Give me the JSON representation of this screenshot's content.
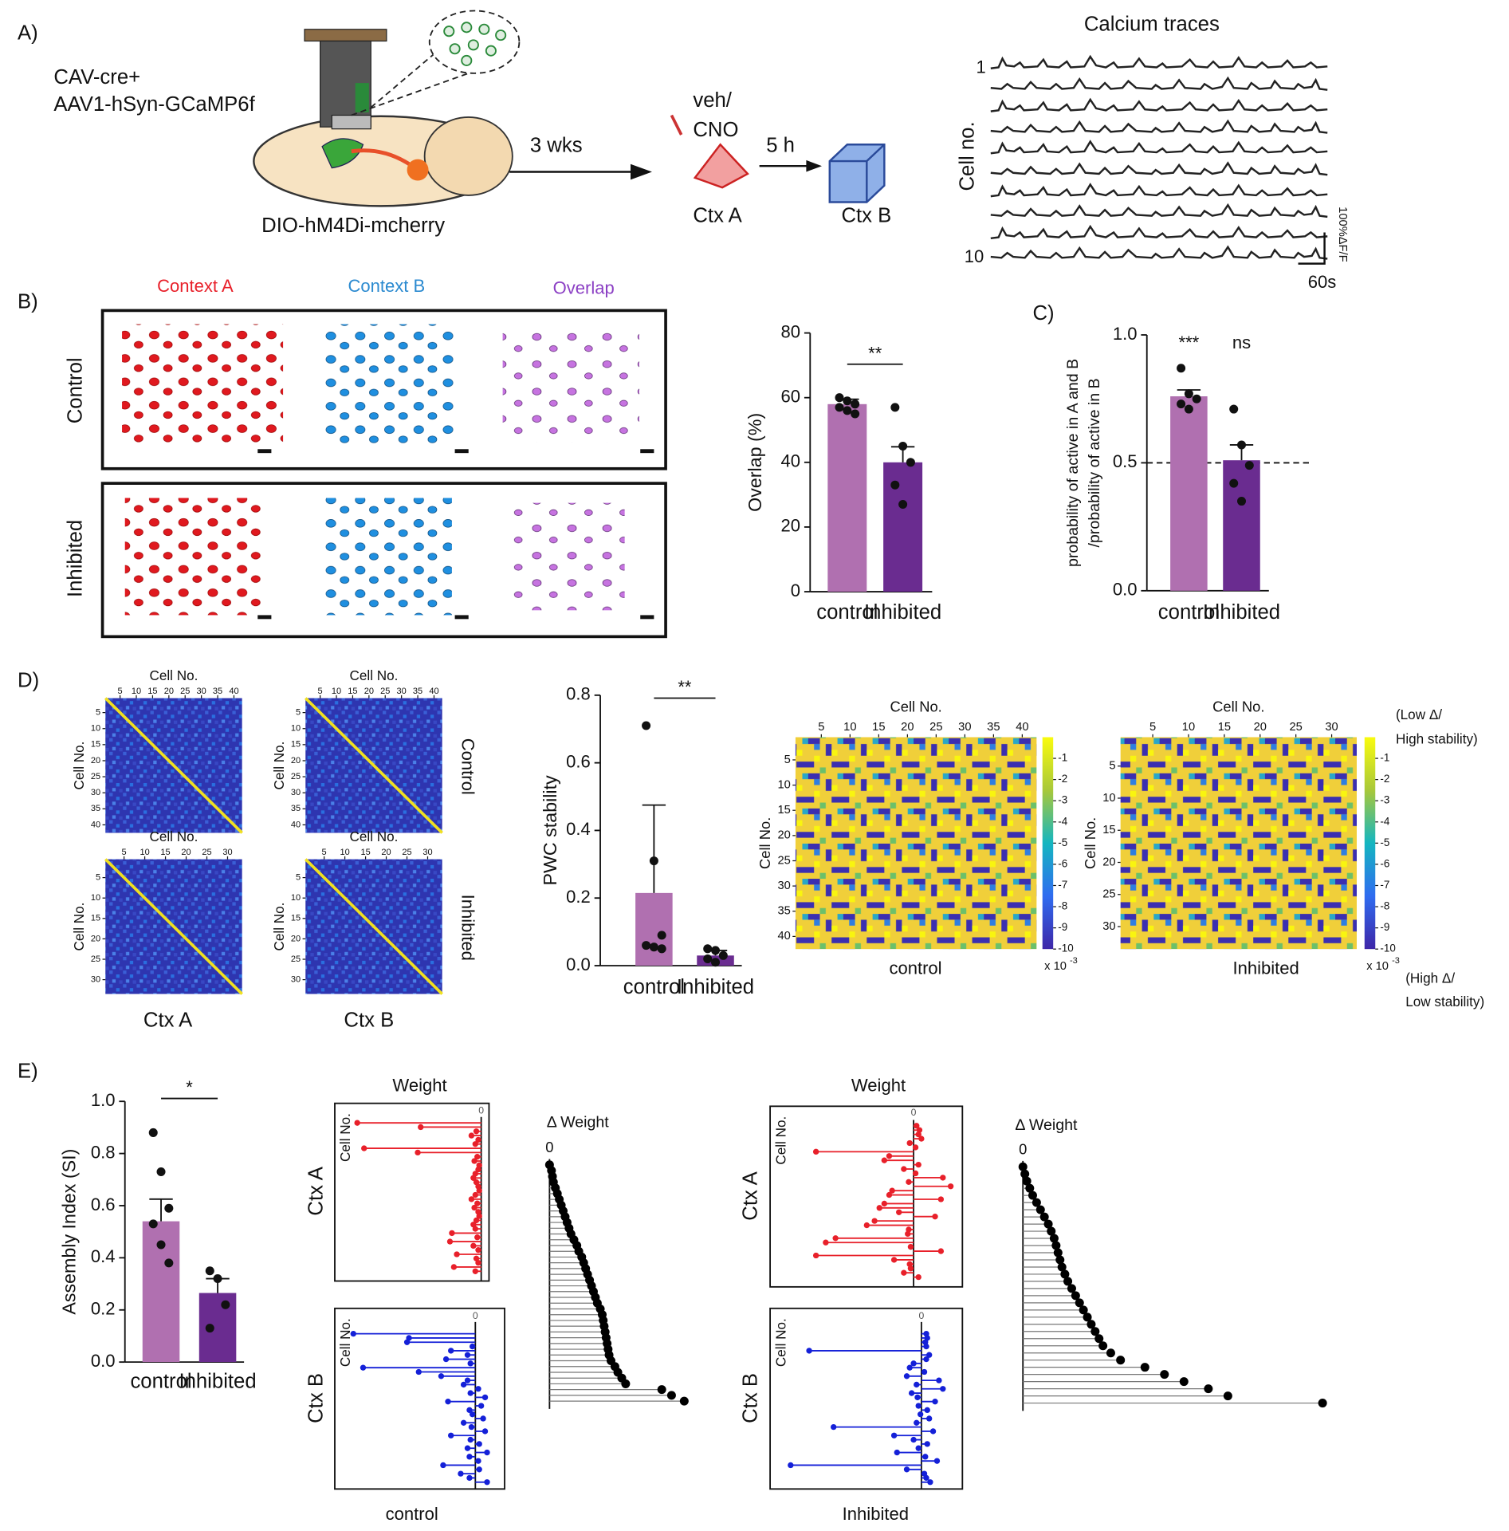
{
  "panel_labels": {
    "a": "A)",
    "b": "B)",
    "c": "C)",
    "d": "D)",
    "e": "E)"
  },
  "panel_a": {
    "injection": [
      "CAV-cre+",
      "AAV1-hSyn-GCaMP6f"
    ],
    "receptor": "DIO-hM4Di-mcherry",
    "delay": "3 wks",
    "treatment": [
      "veh/",
      "CNO"
    ],
    "context_a": "Ctx A",
    "interval": "5 h",
    "context_b": "Ctx B",
    "traces_title": "Calcium traces",
    "cell_axis": "Cell no.",
    "first_cell": "1",
    "last_cell": "10",
    "scale_y": "100%ΔF/F",
    "scale_x": "60s"
  },
  "panel_b": {
    "columns": [
      "Context A",
      "Context B",
      "Overlap"
    ],
    "rows": [
      "Control",
      "Inhibited"
    ]
  },
  "panel_d": {
    "cell_axis": "Cell No.",
    "columns": [
      "Ctx A",
      "Ctx B"
    ],
    "rows": [
      "Control",
      "Inhibited"
    ],
    "groups": [
      "control",
      "Inhibited"
    ],
    "ticks_control": [
      5,
      10,
      15,
      20,
      25,
      30,
      35,
      40
    ],
    "lim_control": [
      0.5,
      42.5
    ],
    "ticks_inhibited": [
      5,
      10,
      15,
      20,
      25,
      30
    ],
    "lim_inhibited": [
      0.5,
      33.5
    ],
    "colorbar": {
      "ticks": [
        -1,
        -2,
        -3,
        -4,
        -5,
        -6,
        -7,
        -8,
        -9,
        -10
      ],
      "clim": [
        -10,
        0
      ],
      "multiplier": "x 10",
      "exponent": "-3",
      "top_note": [
        "(Low Δ/",
        "High stability)"
      ],
      "bottom_note": [
        "(High Δ/",
        "Low stability)"
      ]
    }
  },
  "panel_e": {
    "weight_title": "Weight",
    "contexts": [
      "Ctx A",
      "Ctx B"
    ],
    "groups": [
      "control",
      "Inhibited"
    ]
  },
  "chart_data": [
    {
      "type": "bar",
      "ylabel": "Overlap (%)",
      "categories": [
        "control",
        "Inhibited"
      ],
      "colors": [
        "#b070b0",
        "#6a2c90"
      ],
      "values": [
        58,
        40
      ],
      "errors": [
        1.5,
        4.8
      ],
      "points": [
        [
          60,
          59,
          58,
          57,
          56,
          55
        ],
        [
          57,
          45,
          40,
          33,
          27
        ]
      ],
      "ylim": [
        0,
        80
      ],
      "yticks": [
        0,
        20,
        40,
        60,
        80
      ],
      "significance": "**"
    },
    {
      "type": "bar",
      "ylabel": [
        "probability of active in A and B",
        "/probability of active in B"
      ],
      "categories": [
        "control",
        "Inhibited"
      ],
      "colors": [
        "#b070b0",
        "#6a2c90"
      ],
      "values": [
        0.76,
        0.51
      ],
      "errors": [
        0.025,
        0.06
      ],
      "points": [
        [
          0.87,
          0.77,
          0.75,
          0.73,
          0.71
        ],
        [
          0.71,
          0.57,
          0.49,
          0.42,
          0.35
        ]
      ],
      "ylim": [
        0,
        1
      ],
      "yticks": [
        {
          "value": 0,
          "label": "0.0"
        },
        {
          "value": 0.5,
          "label": "0.5"
        },
        {
          "value": 1,
          "label": "1.0"
        }
      ],
      "significance": [
        "***",
        "ns"
      ],
      "reference_line": 0.5
    },
    {
      "type": "bar",
      "ylabel": "PWC stability",
      "categories": [
        "control",
        "Inhibited"
      ],
      "colors": [
        "#b070b0",
        "#6a2c90"
      ],
      "values": [
        0.215,
        0.03
      ],
      "errors": [
        0.26,
        0.015
      ],
      "points": [
        [
          0.71,
          0.31,
          0.09,
          0.06,
          0.055,
          0.05
        ],
        [
          0.05,
          0.045,
          0.03,
          0.02,
          0.01
        ]
      ],
      "ylim": [
        0,
        0.8
      ],
      "yticks": [
        {
          "value": 0,
          "label": "0.0"
        },
        0.2,
        0.4,
        0.6,
        0.8
      ],
      "significance": "**"
    },
    {
      "type": "bar",
      "ylabel": "Assembly Index (SI)",
      "categories": [
        "control",
        "Inhibited"
      ],
      "colors": [
        "#b070b0",
        "#6a2c90"
      ],
      "values": [
        0.54,
        0.265
      ],
      "errors": [
        0.085,
        0.055
      ],
      "points": [
        [
          0.88,
          0.73,
          0.59,
          0.53,
          0.45,
          0.38
        ],
        [
          0.35,
          0.32,
          0.22,
          0.13
        ]
      ],
      "ylim": [
        0,
        1
      ],
      "yticks": [
        {
          "value": 0,
          "label": "0.0"
        },
        0.2,
        0.4,
        0.6,
        0.8,
        {
          "value": 1,
          "label": "1.0"
        }
      ],
      "significance": "*"
    },
    {
      "type": "lollipop",
      "ylabel": "Cell No.",
      "color": "#e8202a",
      "xlim": [
        -150,
        8
      ],
      "xticks": [
        0
      ],
      "values": [
        -127,
        -62,
        -5,
        -10,
        -3,
        -6,
        -120,
        -65,
        -4,
        -7,
        -2,
        -3,
        -6,
        -8,
        -5,
        -3,
        -2,
        -6,
        -10,
        -4,
        -7,
        -3,
        -2,
        -5,
        -8,
        -6,
        -30,
        -4,
        -32,
        -8,
        -3,
        -25,
        -5,
        -3,
        -28,
        -6
      ]
    },
    {
      "type": "lollipop",
      "ylabel": "Cell No.",
      "color": "#1420d8",
      "xlim": [
        -144,
        30
      ],
      "xticks": [
        0
      ],
      "values": [
        -125,
        -68,
        -70,
        -3,
        -25,
        -8,
        -30,
        -5,
        -115,
        -58,
        -35,
        -8,
        -12,
        3,
        -5,
        10,
        -28,
        6,
        -6,
        -3,
        8,
        -12,
        -4,
        10,
        -25,
        -5,
        4,
        -8,
        12,
        -6,
        3,
        -33,
        4,
        -15,
        -6,
        12
      ]
    },
    {
      "type": "lollipop",
      "title": "Δ Weight",
      "color": "#000000",
      "stem_color": "#777777",
      "xlim": [
        0,
        145
      ],
      "xticks": [
        0
      ],
      "values": [
        0,
        2,
        3,
        4,
        6,
        8,
        10,
        12,
        14,
        16,
        18,
        20,
        22,
        25,
        28,
        30,
        33,
        35,
        37,
        39,
        41,
        43,
        45,
        47,
        49,
        52,
        54,
        55,
        56,
        57,
        58,
        59,
        60,
        61,
        63,
        67,
        70,
        74,
        78,
        115,
        125,
        138
      ]
    },
    {
      "type": "lollipop",
      "ylabel": "Cell No.",
      "color": "#e8202a",
      "xlim": [
        -147,
        50
      ],
      "xticks": [
        0
      ],
      "values": [
        3,
        6,
        5,
        8,
        -4,
        2,
        -100,
        -25,
        -30,
        5,
        -10,
        2,
        30,
        -5,
        38,
        -22,
        -25,
        28,
        -30,
        -35,
        -15,
        22,
        -40,
        -48,
        -5,
        -6,
        -80,
        -90,
        -3,
        28,
        -100,
        -20,
        -4,
        -3,
        -10,
        5
      ]
    },
    {
      "type": "lollipop",
      "ylabel": "Cell No.",
      "color": "#1420d8",
      "xlim": [
        -155,
        42
      ],
      "xticks": [
        0
      ],
      "values": [
        5,
        6,
        4,
        5,
        -115,
        8,
        5,
        -8,
        -12,
        3,
        -15,
        18,
        -5,
        22,
        -10,
        -4,
        14,
        -3,
        6,
        -1,
        8,
        -5,
        -90,
        12,
        -28,
        -8,
        6,
        -3,
        -25,
        4,
        16,
        -134,
        -15,
        3,
        5,
        9
      ]
    },
    {
      "type": "lollipop",
      "title": "Δ Weight",
      "color": "#000000",
      "stem_color": "#777777",
      "xlim": [
        0,
        310
      ],
      "xticks": [
        0
      ],
      "values": [
        0,
        2,
        4,
        7,
        10,
        14,
        18,
        22,
        26,
        29,
        32,
        34,
        36,
        38,
        40,
        43,
        46,
        50,
        54,
        58,
        62,
        66,
        70,
        74,
        78,
        82,
        90,
        100,
        125,
        145,
        165,
        190,
        210,
        307
      ]
    }
  ]
}
